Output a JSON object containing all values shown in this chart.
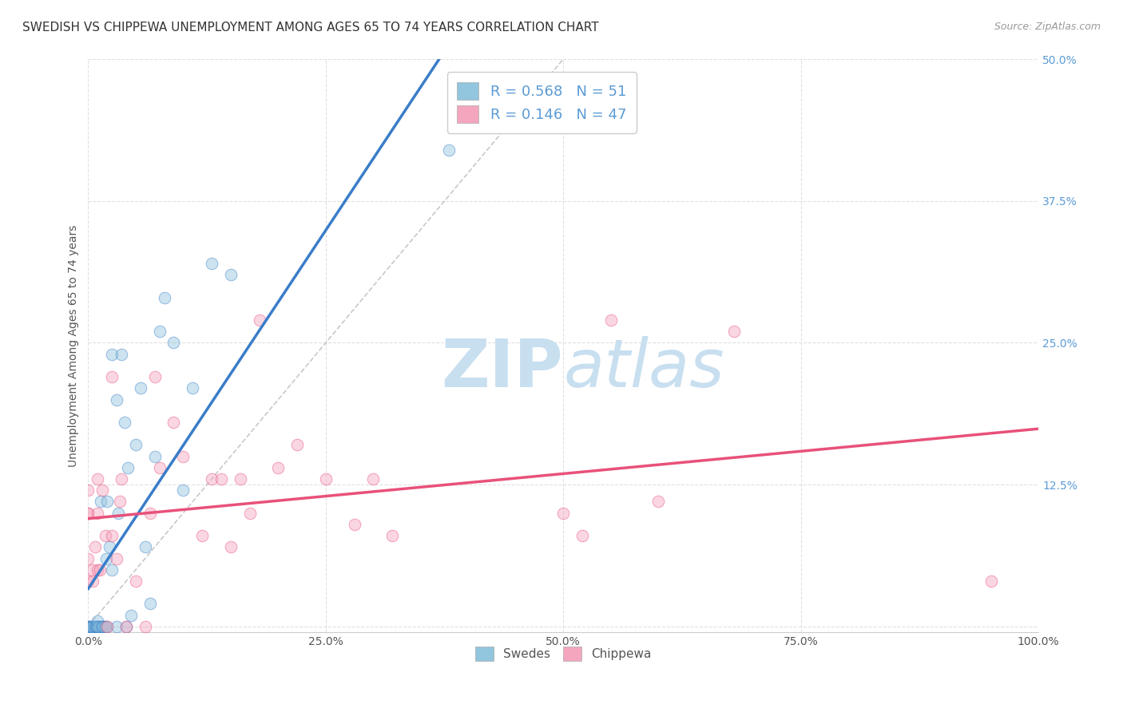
{
  "title": "SWEDISH VS CHIPPEWA UNEMPLOYMENT AMONG AGES 65 TO 74 YEARS CORRELATION CHART",
  "source": "Source: ZipAtlas.com",
  "ylabel": "Unemployment Among Ages 65 to 74 years",
  "xlim": [
    0,
    1.0
  ],
  "ylim": [
    -0.005,
    0.5
  ],
  "xticks": [
    0.0,
    0.25,
    0.5,
    0.75,
    1.0
  ],
  "xticklabels": [
    "0.0%",
    "25.0%",
    "50.0%",
    "75.0%",
    "100.0%"
  ],
  "yticks": [
    0.0,
    0.125,
    0.25,
    0.375,
    0.5
  ],
  "yticklabels": [
    "",
    "12.5%",
    "25.0%",
    "37.5%",
    "50.0%"
  ],
  "blue_color": "#92c5de",
  "pink_color": "#f4a6bf",
  "blue_line_color": "#3a7dc9",
  "pink_line_color": "#e8517a",
  "diagonal_color": "#bbbbbb",
  "swedes_x": [
    0.0,
    0.0,
    0.0,
    0.0,
    0.003,
    0.003,
    0.004,
    0.005,
    0.006,
    0.007,
    0.008,
    0.009,
    0.01,
    0.01,
    0.01,
    0.011,
    0.012,
    0.013,
    0.014,
    0.015,
    0.016,
    0.017,
    0.018,
    0.019,
    0.02,
    0.02,
    0.022,
    0.025,
    0.025,
    0.03,
    0.03,
    0.032,
    0.035,
    0.038,
    0.04,
    0.042,
    0.045,
    0.05,
    0.055,
    0.06,
    0.065,
    0.07,
    0.075,
    0.08,
    0.09,
    0.1,
    0.11,
    0.13,
    0.15,
    0.38,
    0.4
  ],
  "swedes_y": [
    0.0,
    0.0,
    0.0,
    0.0,
    0.0,
    0.0,
    0.0,
    0.0,
    0.0,
    0.0,
    0.0,
    0.0,
    0.0,
    0.0,
    0.005,
    0.0,
    0.0,
    0.11,
    0.0,
    0.0,
    0.0,
    0.0,
    0.0,
    0.06,
    0.11,
    0.0,
    0.07,
    0.05,
    0.24,
    0.0,
    0.2,
    0.1,
    0.24,
    0.18,
    0.0,
    0.14,
    0.01,
    0.16,
    0.21,
    0.07,
    0.02,
    0.15,
    0.26,
    0.29,
    0.25,
    0.12,
    0.21,
    0.32,
    0.31,
    0.42,
    0.46
  ],
  "chippewa_x": [
    0.0,
    0.0,
    0.0,
    0.0,
    0.0,
    0.005,
    0.005,
    0.007,
    0.01,
    0.01,
    0.01,
    0.012,
    0.015,
    0.018,
    0.02,
    0.025,
    0.025,
    0.03,
    0.033,
    0.035,
    0.04,
    0.05,
    0.06,
    0.065,
    0.07,
    0.075,
    0.09,
    0.1,
    0.12,
    0.13,
    0.14,
    0.15,
    0.16,
    0.17,
    0.18,
    0.2,
    0.22,
    0.25,
    0.28,
    0.3,
    0.32,
    0.5,
    0.52,
    0.55,
    0.6,
    0.68,
    0.95
  ],
  "chippewa_y": [
    0.04,
    0.06,
    0.1,
    0.1,
    0.12,
    0.04,
    0.05,
    0.07,
    0.05,
    0.1,
    0.13,
    0.05,
    0.12,
    0.08,
    0.0,
    0.08,
    0.22,
    0.06,
    0.11,
    0.13,
    0.0,
    0.04,
    0.0,
    0.1,
    0.22,
    0.14,
    0.18,
    0.15,
    0.08,
    0.13,
    0.13,
    0.07,
    0.13,
    0.1,
    0.27,
    0.14,
    0.16,
    0.13,
    0.09,
    0.13,
    0.08,
    0.1,
    0.08,
    0.27,
    0.11,
    0.26,
    0.04
  ],
  "background_color": "#ffffff",
  "grid_color": "#dddddd",
  "title_fontsize": 11,
  "axis_label_fontsize": 10,
  "tick_fontsize": 10,
  "legend_fontsize": 13,
  "watermark_zip": "ZIP",
  "watermark_atlas": "atlas",
  "watermark_color": "#c8dff0",
  "watermark_fontsize": 60
}
